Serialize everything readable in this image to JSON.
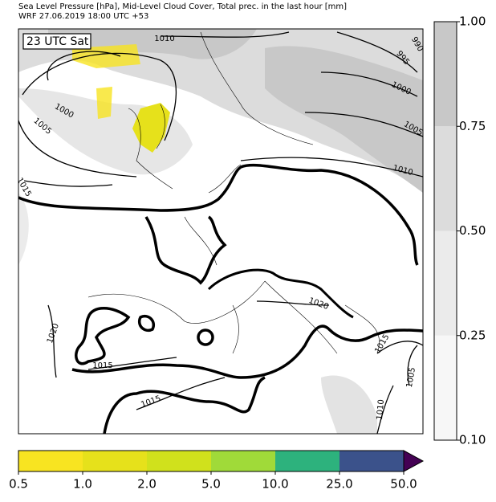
{
  "header": {
    "lines": [
      "Sea Level Pressure [hPa], Mid-Level Cloud Cover, Total prec. in the last hour [mm]",
      "WRF 27.06.2019 18:00 UTC +53"
    ]
  },
  "map": {
    "time_label": "23 UTC Sat",
    "isobar_labels": [
      "1010",
      "990",
      "995",
      "1000",
      "1000",
      "1005",
      "1005",
      "1010",
      "1015",
      "1020",
      "1020",
      "1015",
      "1015",
      "1005",
      "1015",
      "1010"
    ]
  },
  "cloud_colorbar": {
    "ticks": [
      "0.10",
      "0.25",
      "0.50",
      "0.75",
      "1.00"
    ],
    "colors": [
      "#f7f7f7",
      "#ebebeb",
      "#dcdcdc",
      "#c8c8c8"
    ]
  },
  "precip_colorbar": {
    "ticks": [
      "0.5",
      "1.0",
      "2.0",
      "5.0",
      "10.0",
      "25.0",
      "50.0"
    ],
    "colors": [
      "#f8e421",
      "#e6e11b",
      "#d0e11c",
      "#a0da39",
      "#2db27d",
      "#3b528b"
    ],
    "extend_color": "#440154"
  }
}
